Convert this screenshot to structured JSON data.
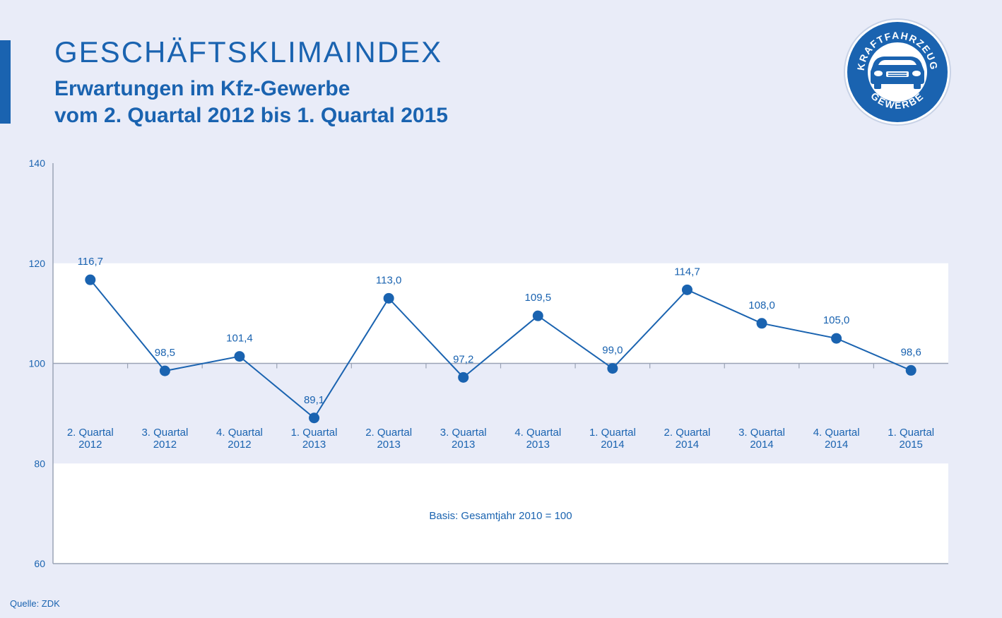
{
  "header": {
    "title": "GESCHÄFTSKLIMAINDEX",
    "subtitle_line1": "Erwartungen im Kfz-Gewerbe",
    "subtitle_line2": "vom 2. Quartal 2012 bis 1. Quartal 2015"
  },
  "logo": {
    "top_text": "KRAFTFAHRZEUG",
    "bottom_text": "GEWERBE",
    "icon": "car-icon"
  },
  "colors": {
    "accent": "#1a63b0",
    "background": "#e9ecf8",
    "band": "#ffffff",
    "axis": "#9aa3b5"
  },
  "source": "Quelle: ZDK",
  "chart_data": {
    "type": "line",
    "title": "GESCHÄFTSKLIMAINDEX",
    "note": "Basis: Gesamtjahr 2010 = 100",
    "ylim": [
      60,
      140
    ],
    "yticks": [
      60,
      80,
      100,
      120,
      140
    ],
    "baseline": 100,
    "grid": false,
    "categories": [
      [
        "2. Quartal",
        "2012"
      ],
      [
        "3. Quartal",
        "2012"
      ],
      [
        "4. Quartal",
        "2012"
      ],
      [
        "1. Quartal",
        "2013"
      ],
      [
        "2. Quartal",
        "2013"
      ],
      [
        "3. Quartal",
        "2013"
      ],
      [
        "4. Quartal",
        "2013"
      ],
      [
        "1. Quartal",
        "2014"
      ],
      [
        "2. Quartal",
        "2014"
      ],
      [
        "3. Quartal",
        "2014"
      ],
      [
        "4. Quartal",
        "2014"
      ],
      [
        "1. Quartal",
        "2015"
      ]
    ],
    "values": [
      116.7,
      98.5,
      101.4,
      89.1,
      113.0,
      97.2,
      109.5,
      99.0,
      114.7,
      108.0,
      105.0,
      98.6
    ],
    "value_labels": [
      "116,7",
      "98,5",
      "101,4",
      "89,1",
      "113,0",
      "97,2",
      "109,5",
      "99,0",
      "114,7",
      "108,0",
      "105,0",
      "98,6"
    ]
  }
}
